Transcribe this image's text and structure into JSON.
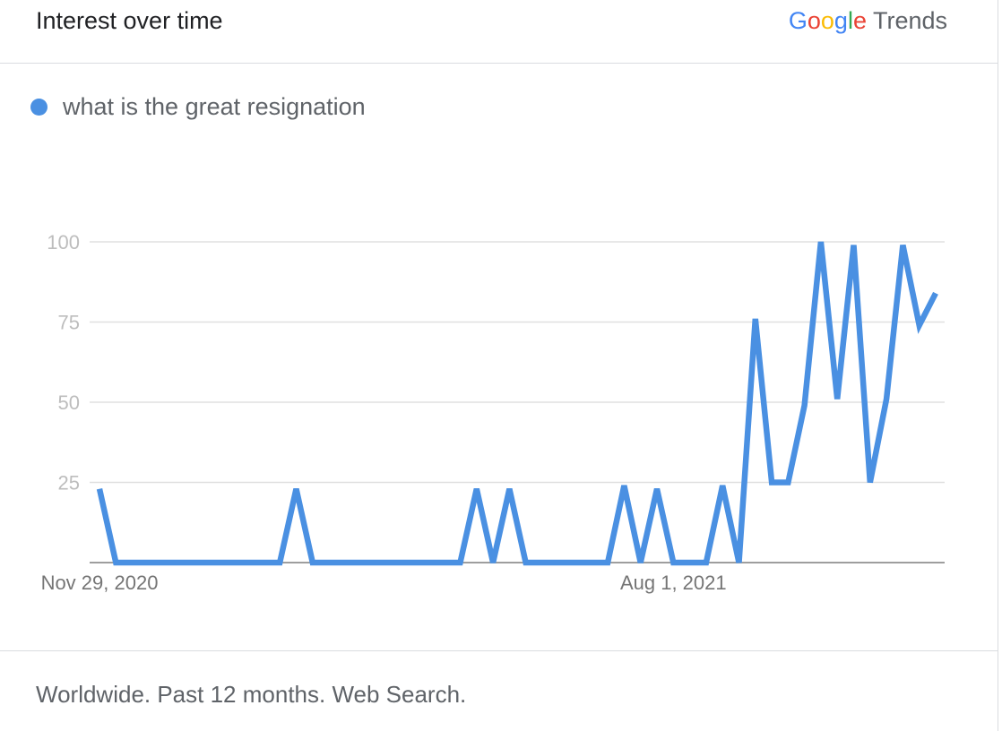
{
  "header": {
    "title": "Interest over time",
    "brand": {
      "letters": [
        {
          "char": "G",
          "color": "#4285F4"
        },
        {
          "char": "o",
          "color": "#EA4335"
        },
        {
          "char": "o",
          "color": "#FBBC05"
        },
        {
          "char": "g",
          "color": "#4285F4"
        },
        {
          "char": "l",
          "color": "#34A853"
        },
        {
          "char": "e",
          "color": "#EA4335"
        }
      ],
      "product": "Trends"
    }
  },
  "legend": {
    "label": "what is the great resignation",
    "color": "#4a90e2"
  },
  "footer": {
    "text": "Worldwide. Past 12 months. Web Search."
  },
  "chart_data": {
    "type": "line",
    "title": "",
    "xlabel": "",
    "ylabel": "",
    "ylim": [
      0,
      100
    ],
    "yticks": [
      25,
      50,
      75,
      100
    ],
    "xtick_labels": [
      {
        "index": 0,
        "label": "Nov 29, 2020"
      },
      {
        "index": 35,
        "label": "Aug 1, 2021"
      }
    ],
    "grid": true,
    "legend_position": "top-left",
    "series": [
      {
        "name": "what is the great resignation",
        "color": "#4a90e2",
        "values": [
          23,
          0,
          0,
          0,
          0,
          0,
          0,
          0,
          0,
          0,
          0,
          0,
          23,
          0,
          0,
          0,
          0,
          0,
          0,
          0,
          0,
          0,
          0,
          23,
          0,
          23,
          0,
          0,
          0,
          0,
          0,
          0,
          24,
          0,
          23,
          0,
          0,
          0,
          24,
          0,
          76,
          25,
          25,
          49,
          100,
          51,
          99,
          25,
          51,
          99,
          74,
          84
        ]
      }
    ]
  }
}
